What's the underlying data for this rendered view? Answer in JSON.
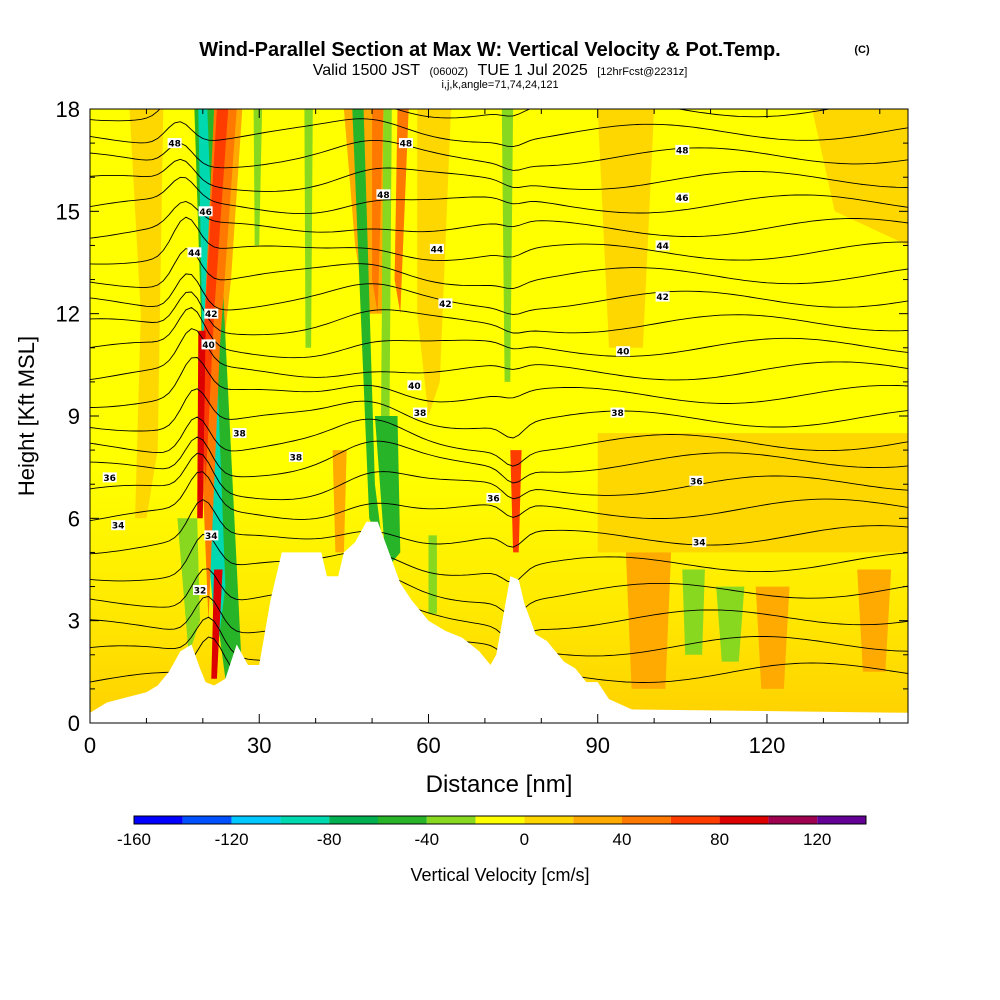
{
  "chart_data": {
    "type": "heatmap",
    "title": {
      "main": "Wind-Parallel Section at Max W: Vertical Velocity & Pot.Temp.",
      "copyright": "(C)",
      "valid_prefix": "Valid 1500 JST",
      "valid_utc": "(0600Z)",
      "valid_date": "TUE 1 Jul 2025",
      "forecast": "[12hrFcst@2231z]",
      "indices": "i,j,k,angle=71,74,24,121"
    },
    "xlabel": "Distance [nm]",
    "ylabel": "Height [Kft MSL]",
    "xlim": [
      0,
      145
    ],
    "ylim": [
      0,
      18
    ],
    "x_ticks": [
      "0",
      "30",
      "60",
      "90",
      "120"
    ],
    "x_tick_values": [
      0,
      30,
      60,
      90,
      120
    ],
    "y_ticks": [
      "0",
      "3",
      "6",
      "9",
      "12",
      "15",
      "18"
    ],
    "y_tick_values": [
      0,
      3,
      6,
      9,
      12,
      15,
      18
    ],
    "colorbar": {
      "label": "Vertical Velocity [cm/s]",
      "tick_labels": [
        "-160",
        "-120",
        "-80",
        "-40",
        "0",
        "40",
        "80",
        "120"
      ],
      "tick_values": [
        -160,
        -120,
        -80,
        -40,
        0,
        40,
        80,
        120
      ],
      "bounds": [
        -160,
        140
      ],
      "step": 20,
      "colors": [
        "#0000ff",
        "#0050ff",
        "#00c8ff",
        "#00d8b0",
        "#00b050",
        "#28b428",
        "#88d820",
        "#ffff00",
        "#ffd700",
        "#ffaa00",
        "#ff7800",
        "#ff3c00",
        "#dc0000",
        "#a00050",
        "#640096"
      ]
    },
    "contour_field": "potential temperature",
    "contour_labels": [
      {
        "text": "48",
        "x": 15,
        "y": 17.0
      },
      {
        "text": "48",
        "x": 56,
        "y": 17.0
      },
      {
        "text": "48",
        "x": 105,
        "y": 16.8
      },
      {
        "text": "48",
        "x": 52,
        "y": 15.5
      },
      {
        "text": "46",
        "x": 105,
        "y": 15.4
      },
      {
        "text": "46",
        "x": 20.5,
        "y": 15.0
      },
      {
        "text": "44",
        "x": 18.5,
        "y": 13.8
      },
      {
        "text": "44",
        "x": 61.5,
        "y": 13.9
      },
      {
        "text": "44",
        "x": 101.5,
        "y": 14.0
      },
      {
        "text": "42",
        "x": 21.5,
        "y": 12.0
      },
      {
        "text": "42",
        "x": 63,
        "y": 12.3
      },
      {
        "text": "42",
        "x": 101.5,
        "y": 12.5
      },
      {
        "text": "40",
        "x": 21,
        "y": 11.1
      },
      {
        "text": "40",
        "x": 57.5,
        "y": 9.9
      },
      {
        "text": "40",
        "x": 94.5,
        "y": 10.9
      },
      {
        "text": "38",
        "x": 26.5,
        "y": 8.5
      },
      {
        "text": "38",
        "x": 36.5,
        "y": 7.8
      },
      {
        "text": "38",
        "x": 58.5,
        "y": 9.1
      },
      {
        "text": "38",
        "x": 93.5,
        "y": 9.1
      },
      {
        "text": "36",
        "x": 3.5,
        "y": 7.2
      },
      {
        "text": "36",
        "x": 71.5,
        "y": 6.6
      },
      {
        "text": "36",
        "x": 107.5,
        "y": 7.1
      },
      {
        "text": "34",
        "x": 5,
        "y": 5.8
      },
      {
        "text": "34",
        "x": 21.5,
        "y": 5.5
      },
      {
        "text": "34",
        "x": 108,
        "y": 5.3
      },
      {
        "text": "32",
        "x": 19.5,
        "y": 3.9
      }
    ]
  }
}
